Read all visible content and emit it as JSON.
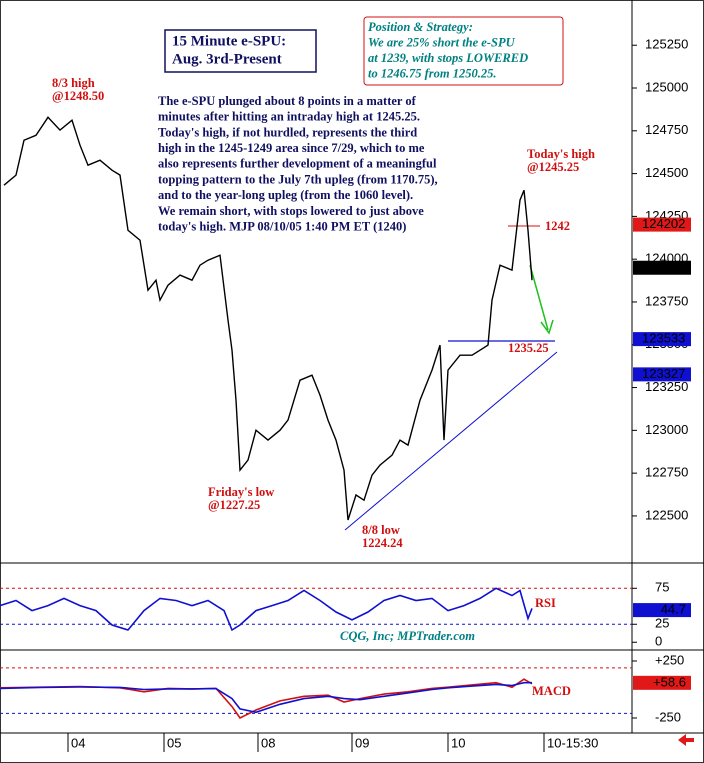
{
  "chart_data": [
    {
      "type": "line",
      "title": [
        "15 Minute e-SPU:",
        "Aug. 3rd-Present"
      ],
      "color": "#000000",
      "x": [
        1,
        4,
        6,
        9,
        12,
        15,
        18,
        20,
        22,
        25,
        28,
        30,
        32,
        35,
        37,
        39,
        40,
        42,
        45,
        48,
        50,
        52,
        55,
        57,
        58,
        59,
        60,
        62,
        64,
        67,
        70,
        72,
        75,
        78,
        80,
        82,
        84,
        86,
        87,
        89,
        91,
        93,
        95,
        98,
        100,
        102,
        105,
        108,
        110,
        111,
        112,
        115,
        118,
        120,
        122,
        123,
        125,
        128,
        130,
        131,
        132,
        133
      ],
      "values": [
        124432,
        124491,
        124695,
        124724,
        124829,
        124754,
        124812,
        124666,
        124549,
        124578,
        124520,
        124491,
        124169,
        124111,
        123819,
        123877,
        123761,
        123848,
        123907,
        123877,
        123965,
        123994,
        124023,
        123644,
        123468,
        123176,
        122768,
        122826,
        123001,
        122943,
        123001,
        123060,
        123293,
        123322,
        123206,
        123060,
        122943,
        122768,
        122476,
        122622,
        122592,
        122738,
        122797,
        122855,
        122943,
        122914,
        123176,
        123352,
        123498,
        122943,
        123352,
        123439,
        123439,
        123468,
        123498,
        123761,
        123965,
        123936,
        124345,
        124403,
        124169,
        123877
      ],
      "xlim": [
        0,
        158
      ],
      "ylim": [
        122225,
        125485
      ],
      "yticks": [
        125250,
        125000,
        124750,
        124500,
        124250,
        124000,
        123750,
        123500,
        123250,
        123000,
        122750,
        122500
      ],
      "xticks": [
        {
          "value": 17,
          "label": "04"
        },
        {
          "value": 41,
          "label": "05"
        },
        {
          "value": 64.5,
          "label": "08"
        },
        {
          "value": 88,
          "label": "09"
        },
        {
          "value": 112,
          "label": "10"
        },
        {
          "value": 136,
          "label": "10-15:30"
        }
      ],
      "price_markers": [
        {
          "value": 124202,
          "color": "#e01818"
        },
        {
          "value": 123950,
          "color": "#000000"
        },
        {
          "value": 123533,
          "color": "#1010d0"
        },
        {
          "value": 123327,
          "color": "#1010d0"
        }
      ],
      "strategy": [
        "Position & Strategy:",
        "We are 25% short the e-SPU",
        "at 1239, with stops LOWERED",
        "to 1246.75 from 1250.25."
      ],
      "commentary": [
        "The e-SPU plunged about 8 points in a matter of",
        "minutes after hitting an intraday high at 1245.25.",
        "Today's high, if not hurdled, represents the third",
        "high in the 1245-1249 area since 7/29, which to me",
        "also represents further development of a meaningful",
        "topping pattern to the July 7th upleg (from 1170.75),",
        "and to the year-long upleg (from the 1060 level).",
        "We remain short, with stops lowered to just above",
        "today's high.  MJP  08/10/05  1:40 PM ET  (1240)"
      ],
      "notes": {
        "high_83": [
          "8/3 high",
          "@1248.50"
        ],
        "today_high": [
          "Today's high",
          "@1245.25"
        ],
        "stop": "1242",
        "support": "1235.25",
        "friday_low": [
          "Friday's low",
          "@1227.25"
        ],
        "low_88": [
          "8/8 low",
          "1224.24"
        ]
      }
    },
    {
      "type": "line",
      "name": "RSI",
      "color": "#1010d0",
      "credit": "CQG, Inc; MPTrader.com",
      "x": [
        0,
        4,
        8,
        12,
        16,
        20,
        24,
        28,
        32,
        36,
        40,
        44,
        48,
        52,
        56,
        58,
        60,
        64,
        68,
        72,
        76,
        80,
        84,
        88,
        92,
        96,
        100,
        104,
        108,
        112,
        116,
        120,
        124,
        128,
        130,
        132,
        133
      ],
      "values": [
        51,
        58,
        44,
        51,
        61,
        51,
        44,
        24,
        17,
        44,
        61,
        58,
        51,
        58,
        44,
        17,
        24,
        44,
        51,
        58,
        72,
        58,
        42,
        31,
        42,
        58,
        65,
        58,
        61,
        44,
        51,
        61,
        75,
        65,
        72,
        33,
        47
      ],
      "xlim": [
        0,
        158
      ],
      "ylim": [
        -8,
        106
      ],
      "yticks": [
        75,
        25,
        0
      ],
      "levels": [
        {
          "value": 75,
          "color": "#d01010"
        },
        {
          "value": 25,
          "color": "#1010d0"
        }
      ],
      "last": {
        "value": 44.7,
        "color": "#1010d0"
      }
    },
    {
      "type": "line",
      "name": "MACD",
      "x": [
        0,
        10,
        20,
        30,
        36,
        42,
        48,
        54,
        58,
        60,
        64,
        70,
        76,
        82,
        86,
        90,
        96,
        102,
        108,
        112,
        118,
        124,
        128,
        131,
        133
      ],
      "series": [
        {
          "color": "#d01010",
          "values": [
            15,
            20,
            25,
            15,
            -20,
            10,
            5,
            10,
            -150,
            -250,
            -180,
            -100,
            -60,
            -50,
            -110,
            -80,
            -40,
            -20,
            10,
            20,
            40,
            60,
            20,
            90,
            50
          ]
        },
        {
          "color": "#1010d0",
          "values": [
            10,
            18,
            22,
            18,
            0,
            5,
            5,
            8,
            -80,
            -170,
            -200,
            -130,
            -80,
            -60,
            -80,
            -90,
            -60,
            -30,
            0,
            15,
            30,
            45,
            35,
            60,
            60
          ]
        }
      ],
      "xlim": [
        0,
        158
      ],
      "ylim": [
        -373,
        329
      ],
      "yticks": [
        {
          "value": 250,
          "label": "+250"
        },
        {
          "value": -250,
          "label": "-250"
        }
      ],
      "levels": [
        {
          "value": 190,
          "color": "#d01010"
        },
        {
          "value": -210,
          "color": "#1010d0"
        }
      ],
      "last": {
        "value": 58.6,
        "label": "+58.6",
        "color": "#e01818"
      }
    }
  ]
}
